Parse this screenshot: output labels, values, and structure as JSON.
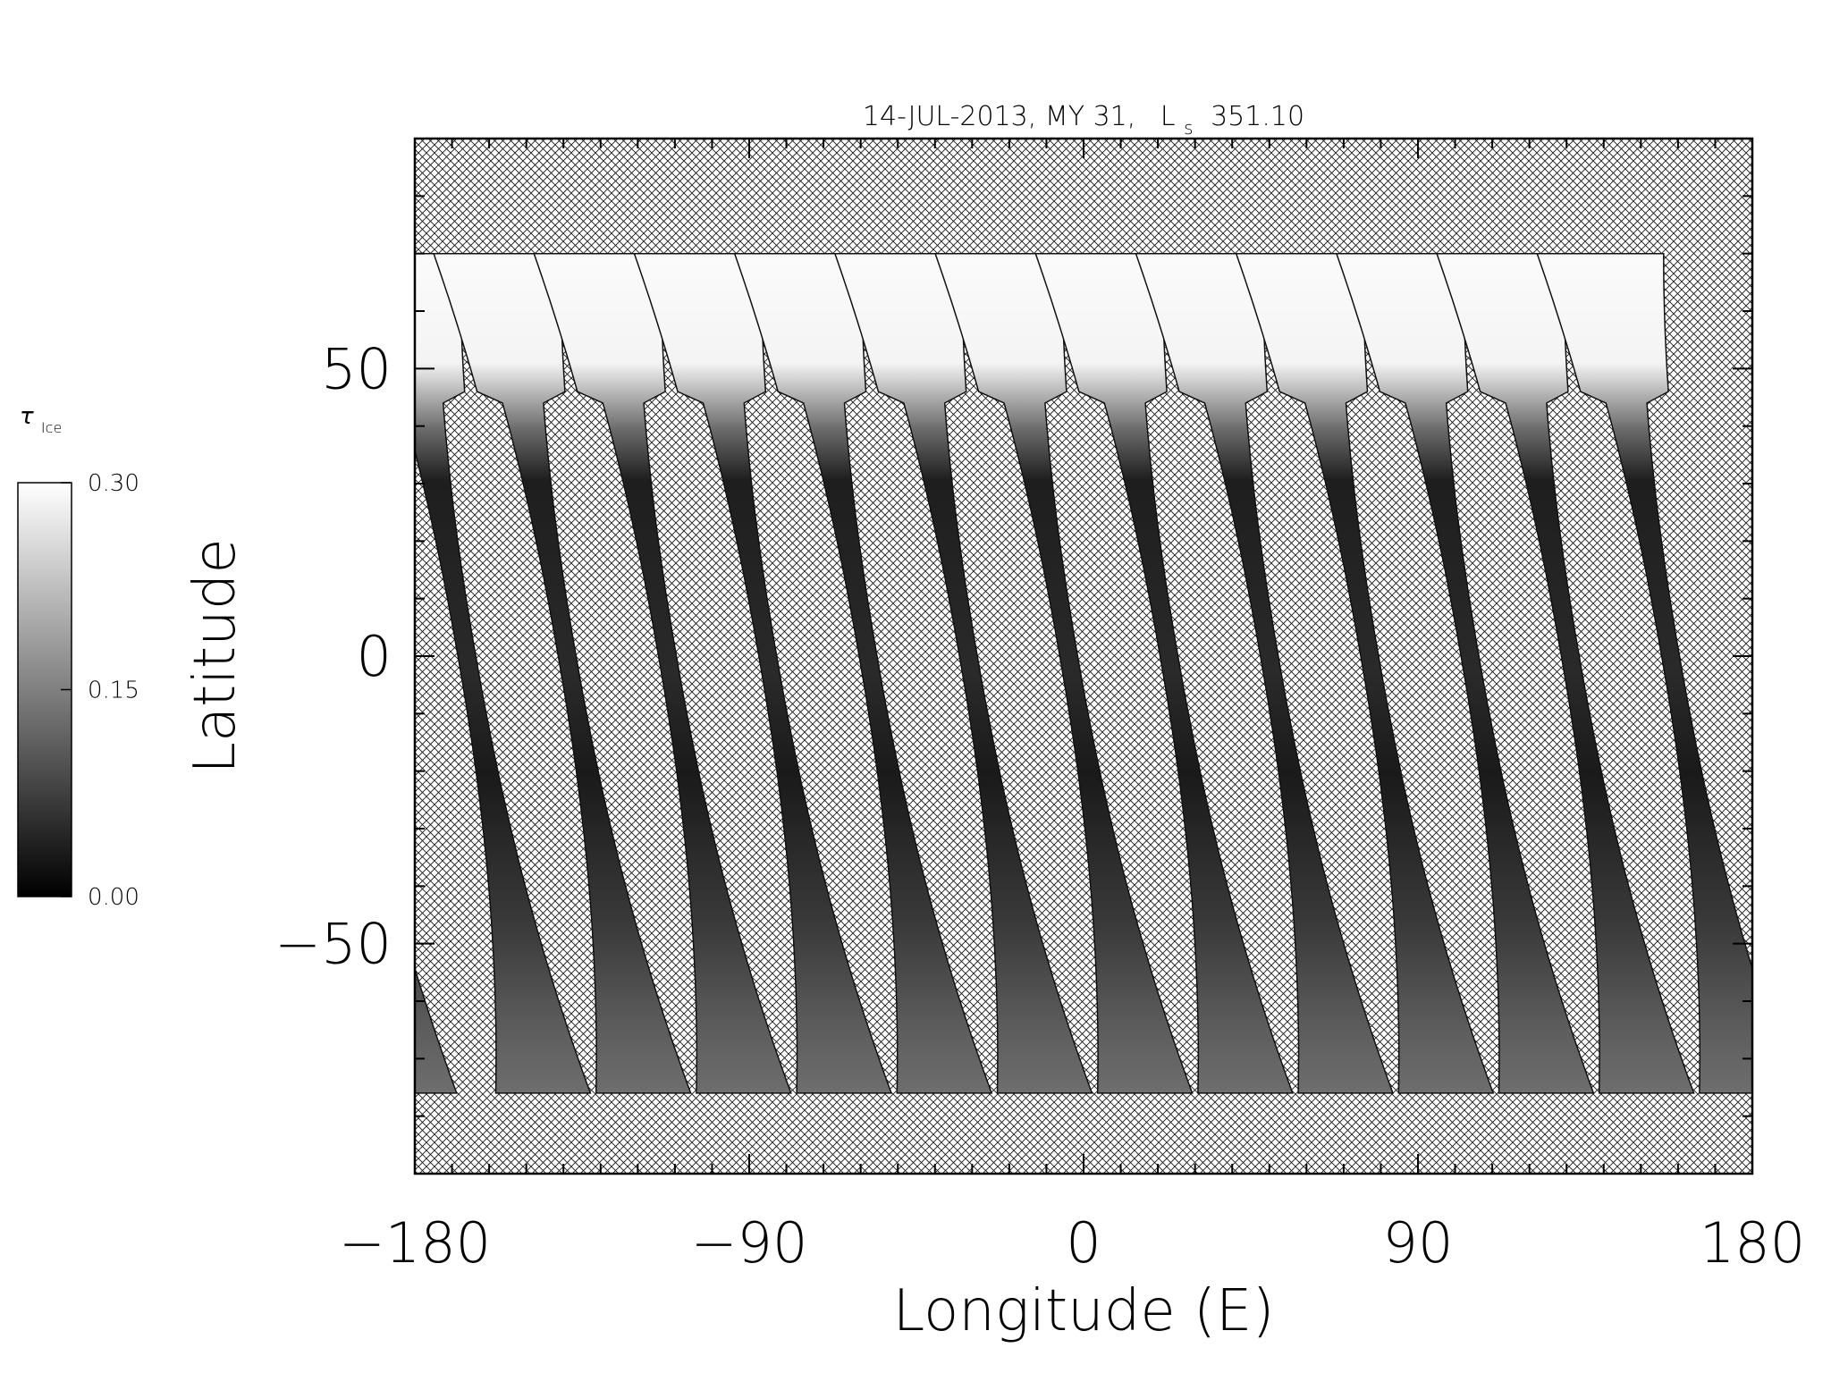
{
  "chart_data": {
    "type": "heatmap",
    "title_date": "14-JUL-2013, MY 31,",
    "title_ls_prefix": "L",
    "title_ls_subscript": "s",
    "title_ls_value": "351.10",
    "xlabel": "Longitude (E)",
    "ylabel": "Latitude",
    "xlim": [
      -180,
      180
    ],
    "ylim": [
      -90,
      90
    ],
    "xticks": [
      -180,
      -90,
      0,
      90,
      180
    ],
    "xtick_labels": [
      "−180",
      "−90",
      "0",
      "90",
      "180"
    ],
    "yticks": [
      50,
      0,
      -50
    ],
    "ytick_labels": [
      "50",
      "0",
      "−50"
    ],
    "colorbar": {
      "label_symbol": "τ",
      "label_subscript": "Ice",
      "min": 0.0,
      "max": 0.3,
      "ticks": [
        0.0,
        0.15,
        0.3
      ],
      "tick_labels": [
        "0.00",
        "0.15",
        "0.30"
      ],
      "colormap": "grayscale"
    },
    "swaths": {
      "count": 13,
      "equator_longitudes": [
        -166,
        -139,
        -112,
        -85,
        -58,
        -31,
        -4,
        23,
        50,
        77,
        104,
        131,
        158
      ],
      "north_edge_lat": 70,
      "south_edge_lat": -77,
      "polar_cap_lat": 52,
      "no_data_fill": "cross-hatch"
    },
    "grid": false
  }
}
